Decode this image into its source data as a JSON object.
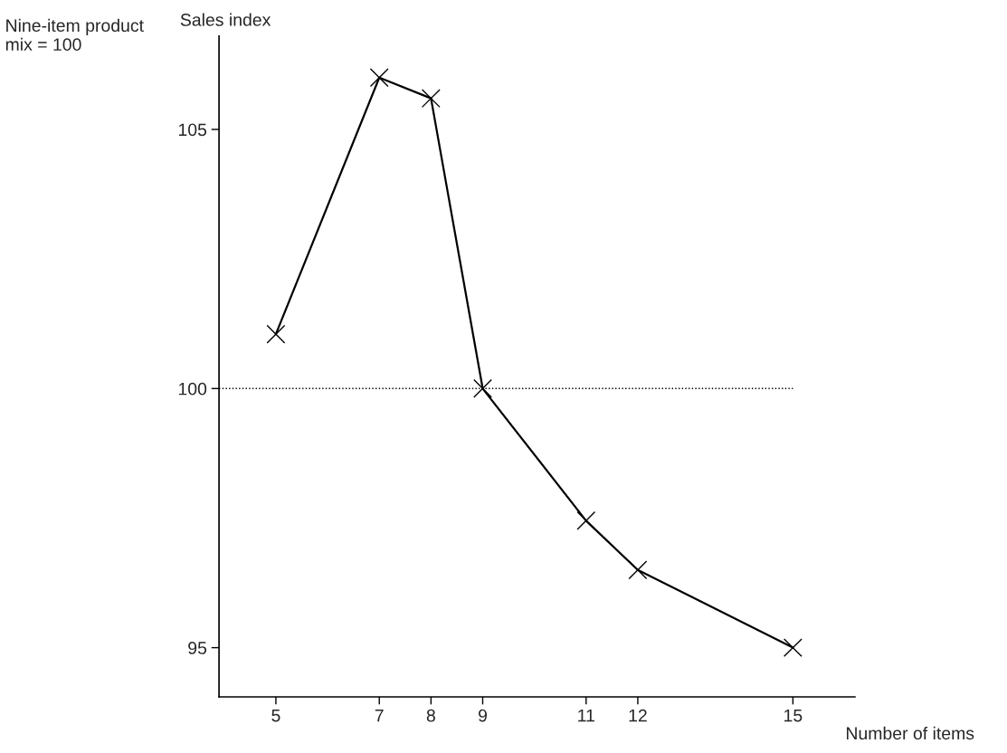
{
  "chart_data": {
    "type": "line",
    "ylabel": "Sales index",
    "xlabel": "Number of items",
    "annotations": [
      "Nine-item product\nmix = 100"
    ],
    "x": [
      5,
      7,
      8,
      9,
      11,
      12,
      15
    ],
    "series": [
      {
        "color": "#000000",
        "values": [
          101.05,
          106.0,
          105.6,
          100,
          97.45,
          96.5,
          95.0
        ]
      }
    ],
    "xlim": [
      3.9,
      16.2
    ],
    "xticks": [
      5,
      7,
      8,
      9,
      11,
      12,
      15
    ],
    "ylim": [
      94.05,
      106.8
    ],
    "yticks": [
      95,
      100,
      105
    ],
    "ref_lines": [
      {
        "axis": "y",
        "value": 100,
        "line_style": "dotted",
        "color": "#000000"
      }
    ],
    "marker": "cross",
    "line_style": "solid",
    "grid": false,
    "legend": false
  }
}
